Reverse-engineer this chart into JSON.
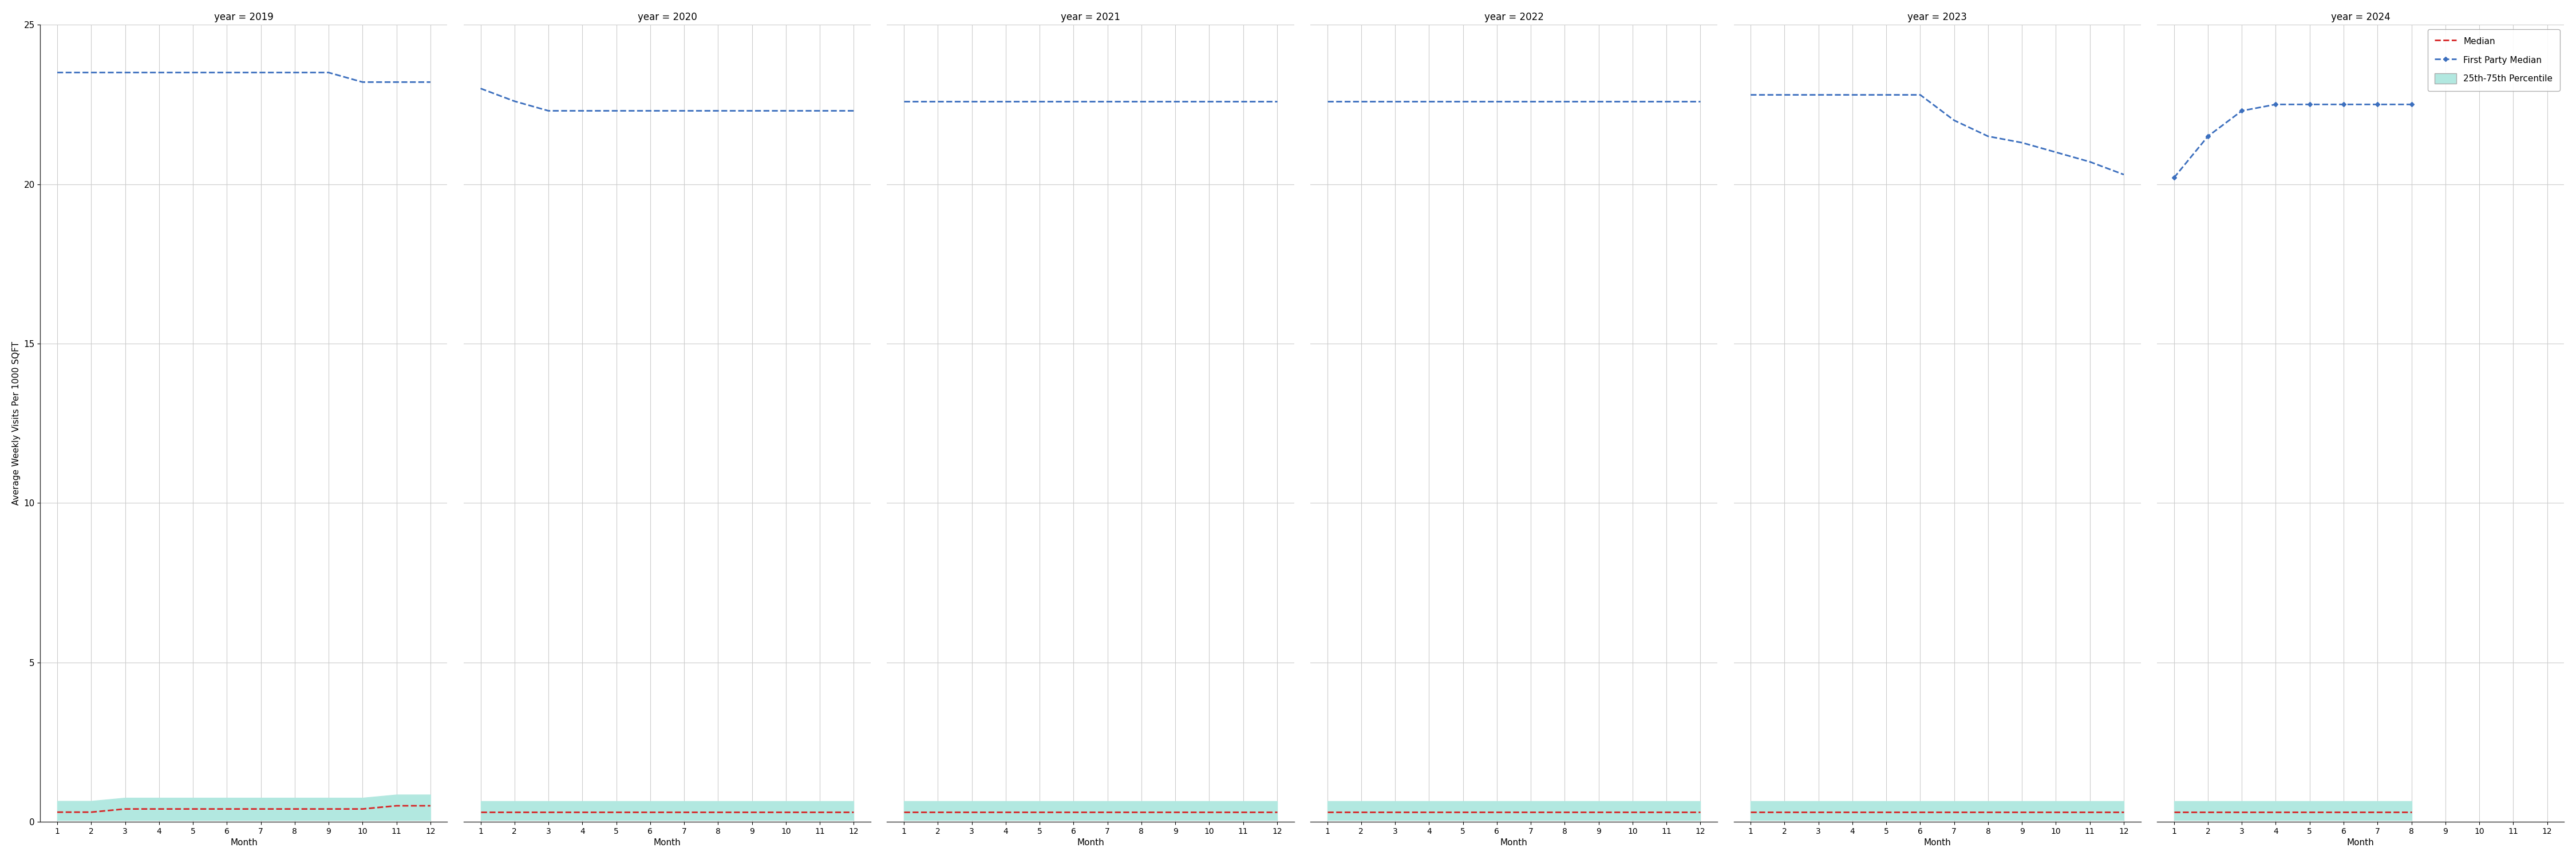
{
  "years": [
    2019,
    2020,
    2021,
    2022,
    2023,
    2024
  ],
  "months": [
    1,
    2,
    3,
    4,
    5,
    6,
    7,
    8,
    9,
    10,
    11,
    12
  ],
  "first_party_median": {
    "2019": [
      23.5,
      23.5,
      23.5,
      23.5,
      23.5,
      23.5,
      23.5,
      23.5,
      23.5,
      23.2,
      23.2,
      23.2
    ],
    "2020": [
      23.0,
      22.6,
      22.3,
      22.3,
      22.3,
      22.3,
      22.3,
      22.3,
      22.3,
      22.3,
      22.3,
      22.3
    ],
    "2021": [
      22.6,
      22.6,
      22.6,
      22.6,
      22.6,
      22.6,
      22.6,
      22.6,
      22.6,
      22.6,
      22.6,
      22.6
    ],
    "2022": [
      22.6,
      22.6,
      22.6,
      22.6,
      22.6,
      22.6,
      22.6,
      22.6,
      22.6,
      22.6,
      22.6,
      22.6
    ],
    "2023": [
      22.8,
      22.8,
      22.8,
      22.8,
      22.8,
      22.8,
      22.0,
      21.5,
      21.3,
      21.0,
      20.7,
      20.3
    ],
    "2024": [
      null,
      null,
      null,
      null,
      null,
      null,
      null,
      null,
      null,
      null,
      null,
      null
    ]
  },
  "first_party_median_2024_partial": {
    "months": [
      1,
      2,
      3,
      4,
      5,
      6,
      7,
      8
    ],
    "values": [
      20.2,
      21.5,
      22.3,
      22.5,
      22.5,
      22.5,
      22.5,
      22.5
    ]
  },
  "median": {
    "2019": [
      0.3,
      0.3,
      0.4,
      0.4,
      0.4,
      0.4,
      0.4,
      0.4,
      0.4,
      0.4,
      0.5,
      0.5
    ],
    "2020": [
      0.3,
      0.3,
      0.3,
      0.3,
      0.3,
      0.3,
      0.3,
      0.3,
      0.3,
      0.3,
      0.3,
      0.3
    ],
    "2021": [
      0.3,
      0.3,
      0.3,
      0.3,
      0.3,
      0.3,
      0.3,
      0.3,
      0.3,
      0.3,
      0.3,
      0.3
    ],
    "2022": [
      0.3,
      0.3,
      0.3,
      0.3,
      0.3,
      0.3,
      0.3,
      0.3,
      0.3,
      0.3,
      0.3,
      0.3
    ],
    "2023": [
      0.3,
      0.3,
      0.3,
      0.3,
      0.3,
      0.3,
      0.3,
      0.3,
      0.3,
      0.3,
      0.3,
      0.3
    ],
    "2024": [
      0.3,
      0.3,
      0.3,
      0.3,
      0.3,
      0.3,
      0.3,
      0.3,
      null,
      null,
      null,
      null
    ]
  },
  "percentile_25": {
    "2019": [
      0.05,
      0.05,
      0.05,
      0.05,
      0.05,
      0.05,
      0.05,
      0.05,
      0.05,
      0.05,
      0.05,
      0.05
    ],
    "2020": [
      0.05,
      0.05,
      0.05,
      0.05,
      0.05,
      0.05,
      0.05,
      0.05,
      0.05,
      0.05,
      0.05,
      0.05
    ],
    "2021": [
      0.05,
      0.05,
      0.05,
      0.05,
      0.05,
      0.05,
      0.05,
      0.05,
      0.05,
      0.05,
      0.05,
      0.05
    ],
    "2022": [
      0.05,
      0.05,
      0.05,
      0.05,
      0.05,
      0.05,
      0.05,
      0.05,
      0.05,
      0.05,
      0.05,
      0.05
    ],
    "2023": [
      0.05,
      0.05,
      0.05,
      0.05,
      0.05,
      0.05,
      0.05,
      0.05,
      0.05,
      0.05,
      0.05,
      0.05
    ],
    "2024": [
      0.05,
      0.05,
      0.05,
      0.05,
      0.05,
      0.05,
      0.05,
      0.05,
      null,
      null,
      null,
      null
    ]
  },
  "percentile_75": {
    "2019": [
      0.65,
      0.65,
      0.75,
      0.75,
      0.75,
      0.75,
      0.75,
      0.75,
      0.75,
      0.75,
      0.85,
      0.85
    ],
    "2020": [
      0.65,
      0.65,
      0.65,
      0.65,
      0.65,
      0.65,
      0.65,
      0.65,
      0.65,
      0.65,
      0.65,
      0.65
    ],
    "2021": [
      0.65,
      0.65,
      0.65,
      0.65,
      0.65,
      0.65,
      0.65,
      0.65,
      0.65,
      0.65,
      0.65,
      0.65
    ],
    "2022": [
      0.65,
      0.65,
      0.65,
      0.65,
      0.65,
      0.65,
      0.65,
      0.65,
      0.65,
      0.65,
      0.65,
      0.65
    ],
    "2023": [
      0.65,
      0.65,
      0.65,
      0.65,
      0.65,
      0.65,
      0.65,
      0.65,
      0.65,
      0.65,
      0.65,
      0.65
    ],
    "2024": [
      0.65,
      0.65,
      0.65,
      0.65,
      0.65,
      0.65,
      0.65,
      0.65,
      null,
      null,
      null,
      null
    ]
  },
  "ylim": [
    0,
    25
  ],
  "yticks": [
    0,
    5,
    10,
    15,
    20,
    25
  ],
  "xticks": [
    1,
    2,
    3,
    4,
    5,
    6,
    7,
    8,
    9,
    10,
    11,
    12
  ],
  "ylabel": "Average Weekly Visits Per 1000 SQFT",
  "xlabel": "Month",
  "median_color": "#d62728",
  "first_party_color": "#3c6fbe",
  "percentile_color": "#b2e8e0",
  "background_color": "#ffffff",
  "grid_color": "#cccccc"
}
